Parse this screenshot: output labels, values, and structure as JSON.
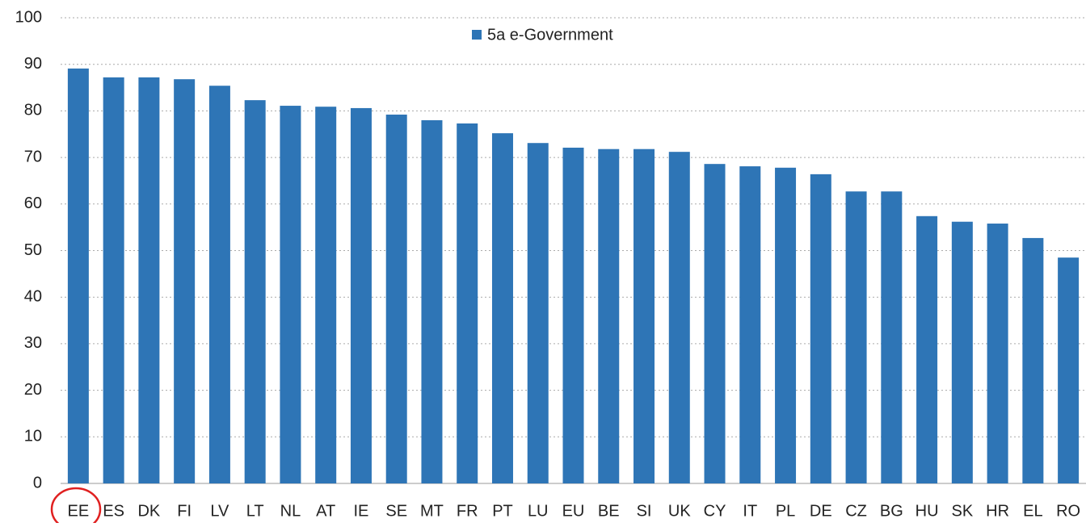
{
  "chart_data": {
    "type": "bar",
    "categories": [
      "EE",
      "ES",
      "DK",
      "FI",
      "LV",
      "LT",
      "NL",
      "AT",
      "IE",
      "SE",
      "MT",
      "FR",
      "PT",
      "LU",
      "EU",
      "BE",
      "SI",
      "UK",
      "CY",
      "IT",
      "PL",
      "DE",
      "CZ",
      "BG",
      "HU",
      "SK",
      "HR",
      "EL",
      "RO"
    ],
    "series": [
      {
        "name": "5a e-Government",
        "color": "#2e75b6",
        "values": [
          89.1,
          87.2,
          87.2,
          86.8,
          85.4,
          82.3,
          81.1,
          80.9,
          80.6,
          79.2,
          78.0,
          77.3,
          75.2,
          73.1,
          72.1,
          71.8,
          71.8,
          71.2,
          68.6,
          68.1,
          67.8,
          66.4,
          62.7,
          62.7,
          57.4,
          56.2,
          55.8,
          52.7,
          48.5
        ]
      }
    ],
    "ylim": [
      0,
      100
    ],
    "yticks": [
      0,
      10,
      20,
      30,
      40,
      50,
      60,
      70,
      80,
      90,
      100
    ],
    "grid": true
  }
}
